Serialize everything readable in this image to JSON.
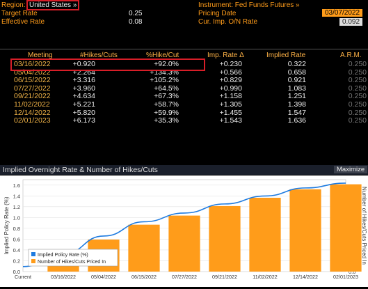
{
  "header": {
    "region_label": "Region:",
    "region_value": "United States »",
    "instrument_label": "Instrument: Fed Funds Futures »",
    "target_rate_label": "Target Rate",
    "target_rate_value": "0.25",
    "effective_rate_label": "Effective Rate",
    "effective_rate_value": "0.08",
    "pricing_date_label": "Pricing Date",
    "pricing_date_value": "03/07/2022",
    "cur_imp_label": "Cur. Imp. O/N Rate",
    "cur_imp_value": "0.092"
  },
  "table": {
    "columns": [
      "Meeting",
      "#Hikes/Cuts",
      "%Hike/Cut",
      "Imp. Rate Δ",
      "Implied Rate",
      "A.R.M."
    ],
    "rows": [
      {
        "meeting": "03/16/2022",
        "hikes": "+0.920",
        "pct": "+92.0%",
        "imp_delta": "+0.230",
        "implied": "0.322",
        "arm": "0.250"
      },
      {
        "meeting": "05/04/2022",
        "hikes": "+2.264",
        "pct": "+134.3%",
        "imp_delta": "+0.566",
        "implied": "0.658",
        "arm": "0.250"
      },
      {
        "meeting": "06/15/2022",
        "hikes": "+3.316",
        "pct": "+105.2%",
        "imp_delta": "+0.829",
        "implied": "0.921",
        "arm": "0.250"
      },
      {
        "meeting": "07/27/2022",
        "hikes": "+3.960",
        "pct": "+64.5%",
        "imp_delta": "+0.990",
        "implied": "1.083",
        "arm": "0.250"
      },
      {
        "meeting": "09/21/2022",
        "hikes": "+4.634",
        "pct": "+67.3%",
        "imp_delta": "+1.158",
        "implied": "1.251",
        "arm": "0.250"
      },
      {
        "meeting": "11/02/2022",
        "hikes": "+5.221",
        "pct": "+58.7%",
        "imp_delta": "+1.305",
        "implied": "1.398",
        "arm": "0.250"
      },
      {
        "meeting": "12/14/2022",
        "hikes": "+5.820",
        "pct": "+59.9%",
        "imp_delta": "+1.455",
        "implied": "1.547",
        "arm": "0.250"
      },
      {
        "meeting": "02/01/2023",
        "hikes": "+6.173",
        "pct": "+35.3%",
        "imp_delta": "+1.543",
        "implied": "1.636",
        "arm": "0.250"
      }
    ]
  },
  "chart_header": {
    "title": "Implied Overnight Rate & Number of Hikes/Cuts",
    "maximize_label": "Maximize"
  },
  "chart_data": {
    "type": "bar",
    "categories": [
      "Current",
      "03/16/2022",
      "05/04/2022",
      "06/15/2022",
      "07/27/2022",
      "09/21/2022",
      "11/02/2022",
      "12/14/2022",
      "02/01/2023"
    ],
    "series": [
      {
        "name": "Implied Policy Rate (%)",
        "type": "line",
        "axis": "left",
        "color": "#1e7be0",
        "values": [
          0.092,
          0.322,
          0.658,
          0.921,
          1.083,
          1.251,
          1.398,
          1.547,
          1.636
        ]
      },
      {
        "name": "Number of Hikes/Cuts Priced In",
        "type": "bar",
        "axis": "right",
        "color": "#ff9c1a",
        "values": [
          null,
          0.92,
          2.264,
          3.316,
          3.96,
          4.634,
          5.221,
          5.82,
          6.173
        ]
      }
    ],
    "ylabel": "Implied Policy Rate (%)",
    "y2label": "Number of Hikes/Cuts Priced In",
    "ylim": [
      0.0,
      1.7
    ],
    "y2lim": [
      0.0,
      6.5
    ],
    "yticks": [
      0.0,
      0.2,
      0.4,
      0.6,
      0.8,
      1.0,
      1.2,
      1.4,
      1.6
    ],
    "y2ticks": [
      0.0,
      1.0,
      2.0,
      3.0,
      4.0,
      5.0,
      6.0
    ],
    "legend_position": "bottom-left",
    "grid": true
  }
}
